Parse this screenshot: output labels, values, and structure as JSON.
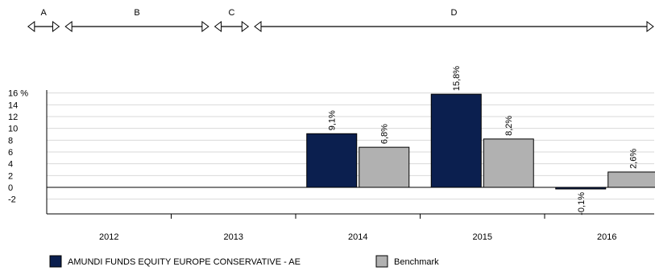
{
  "chart_data": {
    "type": "bar",
    "title": "",
    "xlabel": "",
    "ylabel": "",
    "categories": [
      "2012",
      "2013",
      "2014",
      "2015",
      "2016"
    ],
    "series": [
      {
        "name": "AMUNDI FUNDS EQUITY EUROPE CONSERVATIVE - AE",
        "color": "#0b1f4f",
        "values": [
          null,
          null,
          9.1,
          15.8,
          -0.1
        ],
        "labels": [
          "",
          "",
          "9,1%",
          "15,8%",
          "-0,1%"
        ]
      },
      {
        "name": "Benchmark",
        "color": "#b1b1b1",
        "values": [
          null,
          null,
          6.8,
          8.2,
          2.6
        ],
        "labels": [
          "",
          "",
          "6,8%",
          "8,2%",
          "2,6%"
        ]
      }
    ],
    "y_ticks": [
      {
        "value": 16,
        "label": "16 %"
      },
      {
        "value": 14,
        "label": "14"
      },
      {
        "value": 12,
        "label": "12"
      },
      {
        "value": 10,
        "label": "10"
      },
      {
        "value": 8,
        "label": "8"
      },
      {
        "value": 6,
        "label": "6"
      },
      {
        "value": 4,
        "label": "4"
      },
      {
        "value": 2,
        "label": "2"
      },
      {
        "value": 0,
        "label": "0"
      },
      {
        "value": -2,
        "label": "-2"
      }
    ],
    "ylim": [
      -4.5,
      16.5
    ],
    "grid": true,
    "legend_position": "bottom-left",
    "periods": [
      {
        "label": "A",
        "from": 2011.35,
        "to": 2011.6
      },
      {
        "label": "B",
        "from": 2011.65,
        "to": 2012.8
      },
      {
        "label": "C",
        "from": 2012.85,
        "to": 2013.12
      },
      {
        "label": "D",
        "from": 2013.17,
        "to": 2016.38
      }
    ]
  }
}
